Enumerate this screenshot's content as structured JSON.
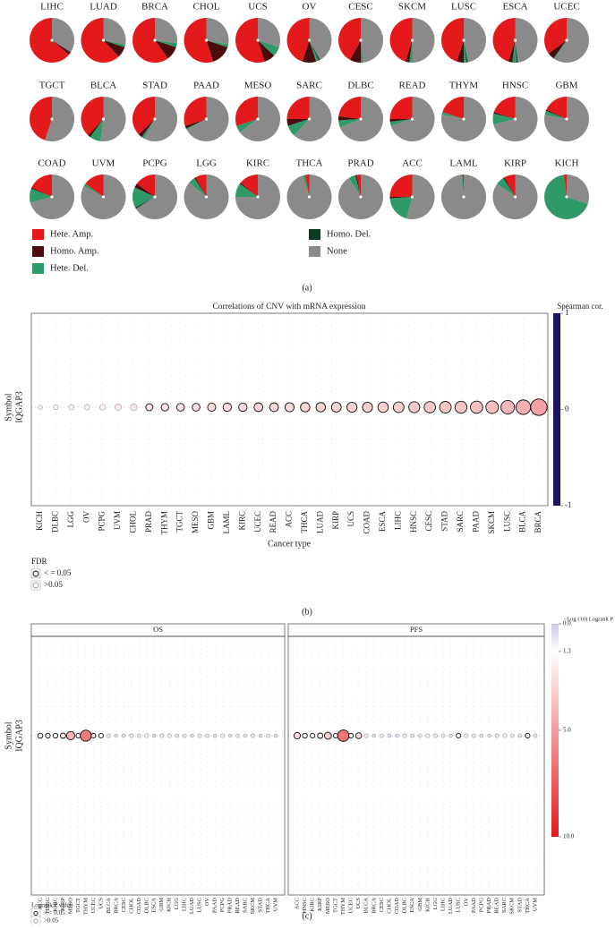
{
  "chart_data": [
    {
      "type": "pie",
      "panel_label": "(a)",
      "legend": "bottom",
      "categories": [
        "LIHC",
        "LUAD",
        "BRCA",
        "CHOL",
        "UCS",
        "OV",
        "CESC",
        "SKCM",
        "LUSC",
        "ESCA",
        "UCEC",
        "TGCT",
        "BLCA",
        "STAD",
        "PAAD",
        "MESO",
        "SARC",
        "DLBC",
        "READ",
        "THYM",
        "HNSC",
        "GBM",
        "COAD",
        "UVM",
        "PCPG",
        "LGG",
        "KIRC",
        "THCA",
        "PRAD",
        "ACC",
        "LAML",
        "KIRP",
        "KICH"
      ],
      "series": [
        {
          "name": "Hete. Amp.",
          "color": "#e3191c",
          "values": [
            64,
            62,
            60,
            55,
            55,
            45,
            42,
            45,
            45,
            45,
            35,
            45,
            38,
            37,
            30,
            30,
            25,
            23,
            25,
            20,
            20,
            18,
            18,
            15,
            15,
            8,
            14,
            3,
            3,
            25,
            1,
            8,
            2
          ]
        },
        {
          "name": "Homo. Amp.",
          "color": "#4a0c0c",
          "values": [
            2,
            8,
            10,
            15,
            8,
            10,
            8,
            3,
            5,
            3,
            5,
            0,
            2,
            3,
            2,
            0,
            5,
            3,
            2,
            0,
            1,
            1,
            1,
            0,
            3,
            1,
            1,
            0,
            1,
            1,
            0,
            1,
            0
          ]
        },
        {
          "name": "Hete. Del.",
          "color": "#2f9a68",
          "values": [
            0,
            2,
            3,
            2,
            7,
            2,
            2,
            2,
            2,
            3,
            1,
            0,
            8,
            2,
            1,
            5,
            8,
            5,
            3,
            2,
            8,
            3,
            10,
            2,
            15,
            5,
            10,
            2,
            5,
            20,
            1,
            6,
            68
          ]
        },
        {
          "name": "Homo. Del.",
          "color": "#0d3b25",
          "values": [
            0,
            0,
            0,
            0,
            0,
            1,
            0,
            0,
            1,
            1,
            0,
            0,
            0,
            0,
            0,
            0,
            0,
            0,
            0,
            0,
            0,
            0,
            0,
            0,
            1,
            0,
            0,
            0,
            0,
            0,
            0,
            0,
            0
          ]
        },
        {
          "name": "None",
          "color": "#8a8a8a",
          "values": [
            34,
            28,
            27,
            28,
            30,
            42,
            48,
            50,
            47,
            48,
            59,
            55,
            52,
            58,
            67,
            65,
            62,
            69,
            70,
            78,
            71,
            78,
            71,
            83,
            66,
            86,
            75,
            95,
            91,
            54,
            98,
            85,
            30
          ]
        }
      ]
    },
    {
      "type": "bubble",
      "panel_label": "(b)",
      "title": "Correlations of CNV with mRNA expression",
      "x_label": "Cancer type",
      "y_label": "Symbol",
      "row_label": "IQGAP3",
      "categories": [
        "KICH",
        "DLBC",
        "LGG",
        "OV",
        "PCPG",
        "UVM",
        "CHOL",
        "PRAD",
        "THYM",
        "TGCT",
        "MESO",
        "GBM",
        "LAML",
        "KIRC",
        "UCEC",
        "READ",
        "ACC",
        "THCA",
        "LUAD",
        "KIRP",
        "UCS",
        "COAD",
        "ESCA",
        "LIHC",
        "HNSC",
        "CESC",
        "STAD",
        "SARC",
        "PAAD",
        "SKCM",
        "LUSC",
        "BLCA",
        "BRCA"
      ],
      "values": [
        0.02,
        0.04,
        0.05,
        0.06,
        0.07,
        0.09,
        0.1,
        0.11,
        0.12,
        0.13,
        0.13,
        0.14,
        0.15,
        0.15,
        0.16,
        0.16,
        0.17,
        0.18,
        0.18,
        0.19,
        0.2,
        0.2,
        0.21,
        0.22,
        0.23,
        0.24,
        0.25,
        0.26,
        0.27,
        0.28,
        0.31,
        0.34,
        0.4
      ],
      "significant": [
        false,
        false,
        false,
        false,
        false,
        false,
        false,
        true,
        true,
        true,
        true,
        true,
        true,
        true,
        true,
        true,
        true,
        true,
        true,
        true,
        true,
        true,
        true,
        true,
        true,
        true,
        true,
        true,
        true,
        true,
        true,
        true,
        true
      ],
      "colorbar_title": "Spearman cor.",
      "clim": [
        -1,
        1
      ],
      "cticks": [
        1,
        0,
        -1
      ],
      "color_scale": [
        {
          "value": -1,
          "color": "#1b1464"
        },
        {
          "value": 0,
          "color": "#ffffff"
        },
        {
          "value": 1,
          "color": "#e3191c"
        }
      ],
      "legend_title": "FDR",
      "legend_labels": [
        "< = 0.05",
        ">0.05"
      ]
    },
    {
      "type": "bubble",
      "panel_label": "(c)",
      "y_label": "Symbol",
      "row_label": "IQGAP3",
      "facets": [
        {
          "title": "OS",
          "categories": [
            "ACC",
            "HNSC",
            "KIRC",
            "KIRP",
            "MESO",
            "TGCT",
            "THYM",
            "UCEC",
            "UCS",
            "BLCA",
            "BRCA",
            "CESC",
            "CHOL",
            "COAD",
            "DLBC",
            "ESCA",
            "GBM",
            "KICH",
            "LGG",
            "LIHC",
            "LUAD",
            "LUSC",
            "OV",
            "PAAD",
            "PCPG",
            "PRAD",
            "READ",
            "SARC",
            "SKCM",
            "STAD",
            "THCA",
            "UVM"
          ],
          "values": [
            1.8,
            1.5,
            1.6,
            2.0,
            4.2,
            1.4,
            6.2,
            1.5,
            1.4,
            0.9,
            0.5,
            0.6,
            0.8,
            0.7,
            0.9,
            0.4,
            0.8,
            0.9,
            0.6,
            0.7,
            0.5,
            0.8,
            0.7,
            0.6,
            0.9,
            0.5,
            0.7,
            0.6,
            0.8,
            0.4,
            0.7,
            0.6
          ],
          "significant": [
            true,
            true,
            true,
            true,
            true,
            true,
            true,
            true,
            true,
            false,
            false,
            false,
            false,
            false,
            false,
            false,
            false,
            false,
            false,
            false,
            false,
            false,
            false,
            false,
            false,
            false,
            false,
            false,
            false,
            false,
            false,
            false
          ]
        },
        {
          "title": "PFS",
          "categories": [
            "ACC",
            "HNSC",
            "KIRC",
            "KIRP",
            "MESO",
            "TGCT",
            "THYM",
            "UCEC",
            "UCS",
            "BLCA",
            "BRCA",
            "CESC",
            "CHOL",
            "COAD",
            "DLBC",
            "ESCA",
            "GBM",
            "KICH",
            "LGG",
            "LIHC",
            "LUAD",
            "LUSC",
            "OV",
            "PAAD",
            "PCPG",
            "PRAD",
            "READ",
            "SARC",
            "SKCM",
            "STAD",
            "THCA",
            "UVM"
          ],
          "values": [
            2.8,
            1.6,
            1.5,
            2.0,
            3.2,
            1.4,
            6.5,
            1.5,
            2.4,
            0.9,
            0.5,
            0.7,
            0.6,
            0.5,
            0.8,
            0.6,
            0.7,
            0.9,
            0.8,
            0.7,
            0.6,
            1.4,
            0.9,
            0.7,
            0.6,
            0.5,
            0.8,
            0.9,
            0.7,
            0.6,
            1.5,
            0.7
          ],
          "significant": [
            true,
            true,
            true,
            true,
            true,
            true,
            true,
            true,
            true,
            false,
            false,
            false,
            false,
            false,
            false,
            false,
            false,
            false,
            false,
            false,
            false,
            true,
            false,
            false,
            false,
            false,
            false,
            false,
            false,
            false,
            true,
            false
          ]
        }
      ],
      "colorbar_title": "−Log (10) Logrank P",
      "colorbar_reversed": true,
      "clim": [
        0,
        10
      ],
      "cticks": [
        {
          "value": 0,
          "label": "0.0"
        },
        1.3,
        {
          "value": 5,
          "label": "5.0"
        },
        {
          "value": 10,
          "label": "10.0"
        }
      ],
      "color_scale": [
        {
          "value": 0,
          "color": "#cfc6e6"
        },
        {
          "value": 1.3,
          "color": "#ffffff"
        },
        {
          "value": 10,
          "color": "#e3191c"
        }
      ],
      "legend_title": "Logrank P value",
      "legend_labels": [
        "< = 0.05",
        ">0.05"
      ]
    }
  ]
}
